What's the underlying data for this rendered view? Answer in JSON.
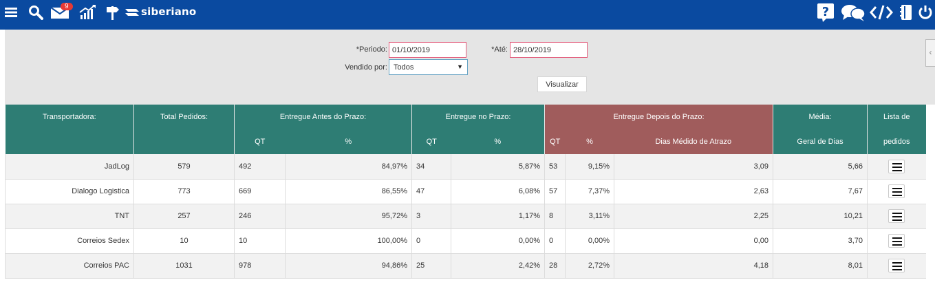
{
  "topbar": {
    "brand": "siberiano",
    "mail_count": "9"
  },
  "filters": {
    "periodo_label": "*Periodo:",
    "periodo_value": "01/10/2019",
    "ate_label": "*Até:",
    "ate_value": "28/10/2019",
    "vendido_label": "Vendido por:",
    "vendido_value": "Todos",
    "visualizar_label": "Visualizar"
  },
  "table": {
    "headers": {
      "transportadora": "Transportadora:",
      "total": "Total Pedidos:",
      "antes": "Entregue Antes do Prazo:",
      "noprazo": "Entregue no Prazo:",
      "depois": "Entregue Depois do Prazo:",
      "media": "Média:",
      "lista": "Lista de",
      "qt": "QT",
      "pct": "%",
      "dias": "Dias Médido de Atrazo",
      "geral": "Geral de Dias",
      "pedidos": "pedidos"
    },
    "rows": [
      {
        "name": "JadLog",
        "total": "579",
        "antes_qt": "492",
        "antes_pct": "84,97%",
        "no_qt": "34",
        "no_pct": "5,87%",
        "dep_qt": "53",
        "dep_pct": "9,15%",
        "dias": "3,09",
        "media": "5,66"
      },
      {
        "name": "Dialogo Logistica",
        "total": "773",
        "antes_qt": "669",
        "antes_pct": "86,55%",
        "no_qt": "47",
        "no_pct": "6,08%",
        "dep_qt": "57",
        "dep_pct": "7,37%",
        "dias": "2,63",
        "media": "7,67"
      },
      {
        "name": "TNT",
        "total": "257",
        "antes_qt": "246",
        "antes_pct": "95,72%",
        "no_qt": "3",
        "no_pct": "1,17%",
        "dep_qt": "8",
        "dep_pct": "3,11%",
        "dias": "2,25",
        "media": "10,21"
      },
      {
        "name": "Correios Sedex",
        "total": "10",
        "antes_qt": "10",
        "antes_pct": "100,00%",
        "no_qt": "0",
        "no_pct": "0,00%",
        "dep_qt": "0",
        "dep_pct": "0,00%",
        "dias": "0,00",
        "media": "3,70"
      },
      {
        "name": "Correios PAC",
        "total": "1031",
        "antes_qt": "978",
        "antes_pct": "94,86%",
        "no_qt": "25",
        "no_pct": "2,42%",
        "dep_qt": "28",
        "dep_pct": "2,72%",
        "dias": "4,18",
        "media": "8,01"
      }
    ]
  },
  "colors": {
    "topbar": "#0a4aa0",
    "header_green": "#2e7d74",
    "header_red": "#a05c5c",
    "badge": "#e53935"
  },
  "icons": [
    "menu-icon",
    "search-icon",
    "mail-icon",
    "chart-icon",
    "signpost-icon",
    "brand-logo-icon",
    "help-icon",
    "chat-icon",
    "code-icon",
    "notebook-icon",
    "power-icon",
    "collapse-chevron-icon",
    "list-icon"
  ]
}
